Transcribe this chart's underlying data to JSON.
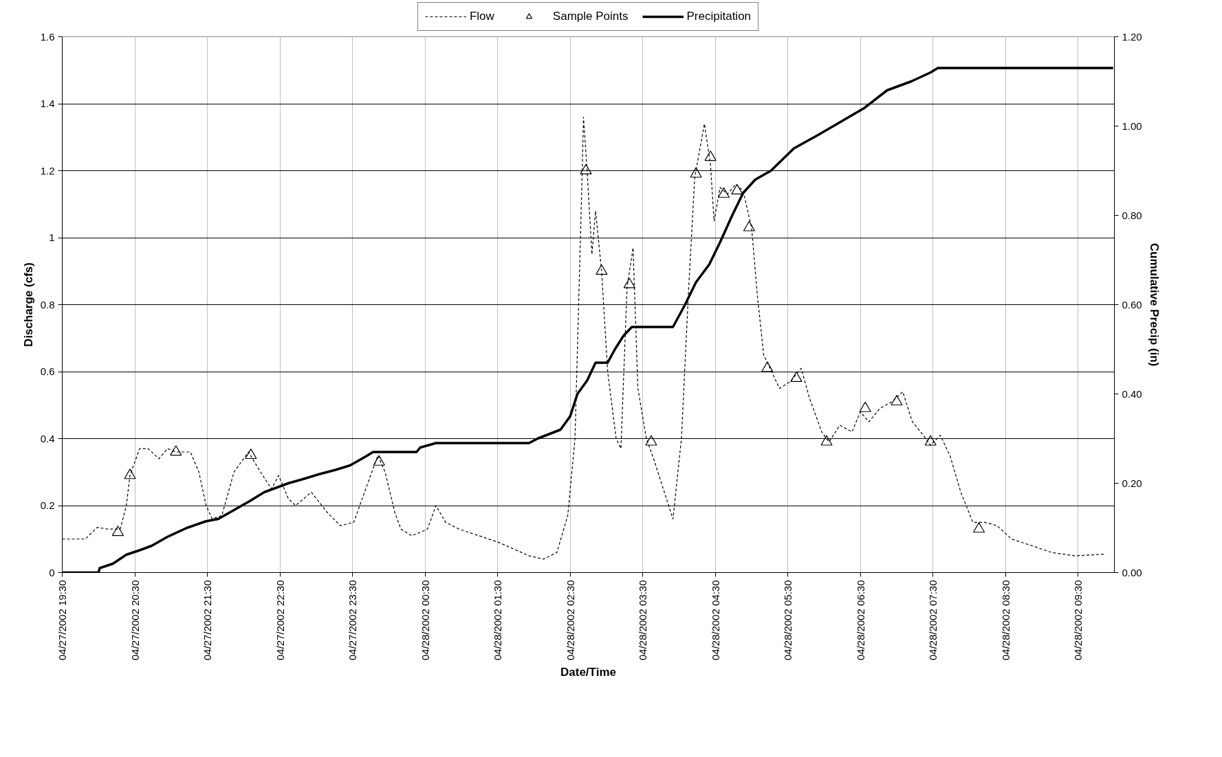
{
  "chart_data": {
    "type": "line",
    "xlabel": "Date/Time",
    "ylabel": "Discharge (cfs)",
    "y2label": "Cumulative Precip (in)",
    "xlim": [
      "2002-04-27T19:30",
      "2002-04-28T10:00"
    ],
    "xticks": [
      {
        "value": "2002-04-27T19:30",
        "label": "04/27/2002 19:30"
      },
      {
        "value": "2002-04-27T20:30",
        "label": "04/27/2002 20:30"
      },
      {
        "value": "2002-04-27T21:30",
        "label": "04/27/2002 21:30"
      },
      {
        "value": "2002-04-27T22:30",
        "label": "04/27/2002 22:30"
      },
      {
        "value": "2002-04-27T23:30",
        "label": "04/27/2002 23:30"
      },
      {
        "value": "2002-04-28T00:30",
        "label": "04/28/2002 00:30"
      },
      {
        "value": "2002-04-28T01:30",
        "label": "04/28/2002 01:30"
      },
      {
        "value": "2002-04-28T02:30",
        "label": "04/28/2002 02:30"
      },
      {
        "value": "2002-04-28T03:30",
        "label": "04/28/2002 03:30"
      },
      {
        "value": "2002-04-28T04:30",
        "label": "04/28/2002 04:30"
      },
      {
        "value": "2002-04-28T05:30",
        "label": "04/28/2002 05:30"
      },
      {
        "value": "2002-04-28T06:30",
        "label": "04/28/2002 06:30"
      },
      {
        "value": "2002-04-28T07:30",
        "label": "04/28/2002 07:30"
      },
      {
        "value": "2002-04-28T08:30",
        "label": "04/28/2002 08:30"
      },
      {
        "value": "2002-04-28T09:30",
        "label": "04/28/2002 09:30"
      }
    ],
    "ylim": [
      0,
      1.6
    ],
    "yticks": [
      0,
      0.2,
      0.4,
      0.6,
      0.8,
      1,
      1.2,
      1.4,
      1.6
    ],
    "y2lim": [
      0,
      1.2
    ],
    "y2ticks": [
      {
        "value": 0,
        "label": "0.00"
      },
      {
        "value": 0.2,
        "label": "0.20"
      },
      {
        "value": 0.4,
        "label": "0.40"
      },
      {
        "value": 0.6,
        "label": "0.60"
      },
      {
        "value": 0.8,
        "label": "0.80"
      },
      {
        "value": 1.0,
        "label": "1.00"
      },
      {
        "value": 1.2,
        "label": "1.20"
      }
    ],
    "grid": true,
    "legend": "top",
    "series": [
      {
        "name": "Flow",
        "line_style": "dashed",
        "color": "#000000",
        "x": [
          "2002-04-27T19:30",
          "2002-04-27T19:49",
          "2002-04-27T19:59",
          "2002-04-27T20:07",
          "2002-04-27T20:18",
          "2002-04-27T20:23",
          "2002-04-27T20:26",
          "2002-04-27T20:34",
          "2002-04-27T20:41",
          "2002-04-27T20:50",
          "2002-04-27T20:57",
          "2002-04-27T21:04",
          "2002-04-27T21:16",
          "2002-04-27T21:23",
          "2002-04-27T21:29",
          "2002-04-27T21:34",
          "2002-04-27T21:42",
          "2002-04-27T21:52",
          "2002-04-27T22:04",
          "2002-04-27T22:14",
          "2002-04-27T22:23",
          "2002-04-27T22:29",
          "2002-04-27T22:37",
          "2002-04-27T22:43",
          "2002-04-27T22:56",
          "2002-04-27T23:09",
          "2002-04-27T23:20",
          "2002-04-27T23:31",
          "2002-04-27T23:41",
          "2002-04-27T23:51",
          "2002-04-27T23:57",
          "2002-04-28T00:05",
          "2002-04-28T00:10",
          "2002-04-28T00:19",
          "2002-04-28T00:26",
          "2002-04-28T00:32",
          "2002-04-28T00:39",
          "2002-04-28T00:47",
          "2002-04-28T00:58",
          "2002-04-28T01:31",
          "2002-04-28T01:56",
          "2002-04-28T02:08",
          "2002-04-28T02:19",
          "2002-04-28T02:28",
          "2002-04-28T02:34",
          "2002-04-28T02:37",
          "2002-04-28T02:40",
          "2002-04-28T02:41",
          "2002-04-28T02:44",
          "2002-04-28T02:48",
          "2002-04-28T02:51",
          "2002-04-28T02:56",
          "2002-04-28T03:01",
          "2002-04-28T03:08",
          "2002-04-28T03:12",
          "2002-04-28T03:17",
          "2002-04-28T03:22",
          "2002-04-28T03:26",
          "2002-04-28T03:33",
          "2002-04-28T03:39",
          "2002-04-28T03:47",
          "2002-04-28T03:55",
          "2002-04-28T04:02",
          "2002-04-28T04:08",
          "2002-04-28T04:13",
          "2002-04-28T04:21",
          "2002-04-28T04:26",
          "2002-04-28T04:29",
          "2002-04-28T04:34",
          "2002-04-28T04:40",
          "2002-04-28T04:47",
          "2002-04-28T04:53",
          "2002-04-28T05:00",
          "2002-04-28T05:05",
          "2002-04-28T05:10",
          "2002-04-28T05:14",
          "2002-04-28T05:23",
          "2002-04-28T05:32",
          "2002-04-28T05:41",
          "2002-04-28T05:48",
          "2002-04-28T05:58",
          "2002-04-28T06:04",
          "2002-04-28T06:13",
          "2002-04-28T06:23",
          "2002-04-28T06:30",
          "2002-04-28T06:37",
          "2002-04-28T06:46",
          "2002-04-28T06:56",
          "2002-04-28T07:05",
          "2002-04-28T07:13",
          "2002-04-28T07:22",
          "2002-04-28T07:28",
          "2002-04-28T07:36",
          "2002-04-28T07:44",
          "2002-04-28T07:53",
          "2002-04-28T08:03",
          "2002-04-28T08:13",
          "2002-04-28T08:23",
          "2002-04-28T08:35",
          "2002-04-28T08:52",
          "2002-04-28T09:08",
          "2002-04-28T09:27",
          "2002-04-28T09:53"
        ],
        "values": [
          0.1,
          0.1,
          0.135,
          0.13,
          0.13,
          0.2,
          0.29,
          0.37,
          0.37,
          0.34,
          0.37,
          0.36,
          0.36,
          0.3,
          0.2,
          0.16,
          0.17,
          0.3,
          0.36,
          0.3,
          0.25,
          0.29,
          0.22,
          0.2,
          0.24,
          0.18,
          0.14,
          0.15,
          0.25,
          0.35,
          0.3,
          0.18,
          0.13,
          0.11,
          0.12,
          0.13,
          0.2,
          0.15,
          0.13,
          0.09,
          0.05,
          0.04,
          0.06,
          0.17,
          0.4,
          0.8,
          1.2,
          1.36,
          1.2,
          0.95,
          1.08,
          0.9,
          0.6,
          0.4,
          0.37,
          0.85,
          0.97,
          0.55,
          0.4,
          0.34,
          0.25,
          0.16,
          0.4,
          0.85,
          1.18,
          1.34,
          1.22,
          1.05,
          1.15,
          1.13,
          1.16,
          1.14,
          1.03,
          0.82,
          0.65,
          0.62,
          0.55,
          0.57,
          0.61,
          0.52,
          0.42,
          0.39,
          0.44,
          0.42,
          0.48,
          0.45,
          0.49,
          0.51,
          0.54,
          0.45,
          0.41,
          0.38,
          0.41,
          0.35,
          0.24,
          0.15,
          0.15,
          0.14,
          0.1,
          0.08,
          0.06,
          0.05,
          0.055
        ]
      },
      {
        "name": "Sample Points",
        "type": "scatter",
        "marker": "triangle",
        "color": "#000000",
        "x": [
          "2002-04-27T20:16",
          "2002-04-27T20:26",
          "2002-04-27T21:04",
          "2002-04-27T22:06",
          "2002-04-27T23:52",
          "2002-04-28T02:43",
          "2002-04-28T02:56",
          "2002-04-28T03:19",
          "2002-04-28T03:37",
          "2002-04-28T04:14",
          "2002-04-28T04:26",
          "2002-04-28T04:37",
          "2002-04-28T04:48",
          "2002-04-28T04:58",
          "2002-04-28T05:13",
          "2002-04-28T05:37",
          "2002-04-28T06:02",
          "2002-04-28T06:34",
          "2002-04-28T07:00",
          "2002-04-28T07:28",
          "2002-04-28T08:08"
        ],
        "values": [
          0.12,
          0.29,
          0.36,
          0.35,
          0.33,
          1.2,
          0.9,
          0.86,
          0.39,
          1.19,
          1.24,
          1.13,
          1.14,
          1.03,
          0.61,
          0.58,
          0.39,
          0.49,
          0.51,
          0.39,
          0.13
        ]
      },
      {
        "name": "Precipitation",
        "axis": "y2",
        "line_style": "solid",
        "color": "#000000",
        "x": [
          "2002-04-27T19:30",
          "2002-04-27T20:00",
          "2002-04-27T20:01",
          "2002-04-27T20:12",
          "2002-04-27T20:23",
          "2002-04-27T20:34",
          "2002-04-27T20:44",
          "2002-04-27T20:57",
          "2002-04-27T21:13",
          "2002-04-27T21:29",
          "2002-04-27T21:39",
          "2002-04-27T21:52",
          "2002-04-27T22:05",
          "2002-04-27T22:17",
          "2002-04-27T22:37",
          "2002-04-27T22:50",
          "2002-04-27T23:02",
          "2002-04-27T23:16",
          "2002-04-27T23:28",
          "2002-04-27T23:41",
          "2002-04-27T23:47",
          "2002-04-28T00:07",
          "2002-04-28T00:23",
          "2002-04-28T00:26",
          "2002-04-28T00:39",
          "2002-04-28T01:56",
          "2002-04-28T02:03",
          "2002-04-28T02:22",
          "2002-04-28T02:30",
          "2002-04-28T02:36",
          "2002-04-28T02:44",
          "2002-04-28T02:51",
          "2002-04-28T03:01",
          "2002-04-28T03:07",
          "2002-04-28T03:14",
          "2002-04-28T03:21",
          "2002-04-28T03:55",
          "2002-04-28T04:05",
          "2002-04-28T04:14",
          "2002-04-28T04:25",
          "2002-04-28T04:34",
          "2002-04-28T04:44",
          "2002-04-28T04:53",
          "2002-04-28T05:03",
          "2002-04-28T05:16",
          "2002-04-28T05:35",
          "2002-04-28T05:55",
          "2002-04-28T06:14",
          "2002-04-28T06:33",
          "2002-04-28T06:52",
          "2002-04-28T07:12",
          "2002-04-28T07:28",
          "2002-04-28T07:34",
          "2002-04-28T09:59"
        ],
        "values": [
          0,
          0,
          0.01,
          0.02,
          0.04,
          0.05,
          0.06,
          0.08,
          0.1,
          0.115,
          0.12,
          0.14,
          0.16,
          0.18,
          0.2,
          0.21,
          0.22,
          0.23,
          0.24,
          0.26,
          0.27,
          0.27,
          0.27,
          0.28,
          0.29,
          0.29,
          0.3,
          0.32,
          0.35,
          0.4,
          0.43,
          0.47,
          0.47,
          0.5,
          0.53,
          0.55,
          0.55,
          0.6,
          0.65,
          0.69,
          0.74,
          0.8,
          0.85,
          0.88,
          0.9,
          0.95,
          0.98,
          1.01,
          1.04,
          1.08,
          1.1,
          1.12,
          1.13,
          1.13
        ]
      }
    ]
  }
}
